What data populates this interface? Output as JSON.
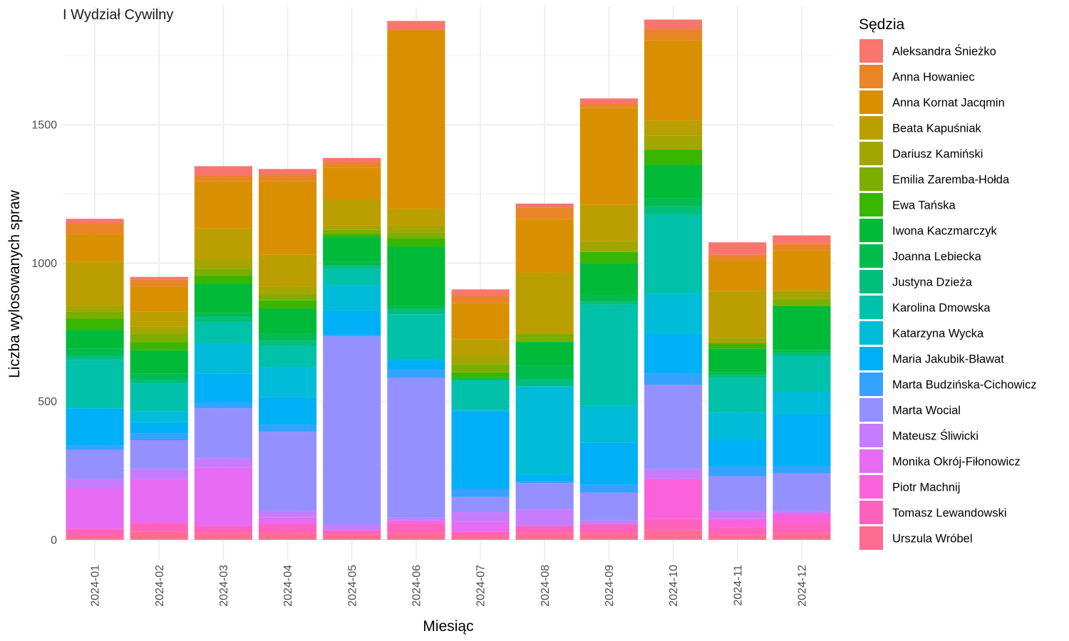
{
  "chart_data": {
    "type": "bar",
    "stacked": true,
    "title": "I Wydział Cywilny",
    "xlabel": "Miesiąc",
    "ylabel": "Liczba wylosowanych spraw",
    "ylim": [
      -75,
      1925
    ],
    "yticks": [
      0,
      500,
      1000,
      1500
    ],
    "grid": true,
    "legend_title": "Sędzia",
    "legend_position": "right",
    "categories": [
      "2024-01",
      "2024-02",
      "2024-03",
      "2024-04",
      "2024-05",
      "2024-06",
      "2024-07",
      "2024-08",
      "2024-09",
      "2024-10",
      "2024-11",
      "2024-12"
    ],
    "series": [
      {
        "name": "Urszula Wróbel",
        "color": "#FF6C91",
        "values": [
          15,
          30,
          25,
          25,
          20,
          25,
          15,
          25,
          25,
          35,
          20,
          25
        ]
      },
      {
        "name": "Tomasz Lewandowski",
        "color": "#FF62BC",
        "values": [
          25,
          30,
          25,
          30,
          15,
          35,
          15,
          25,
          30,
          40,
          25,
          35
        ]
      },
      {
        "name": "Piotr Machnij",
        "color": "#FA62DB",
        "values": [
          0,
          0,
          0,
          0,
          0,
          0,
          0,
          0,
          0,
          145,
          30,
          35
        ]
      },
      {
        "name": "Monika Okrój-Fiłonowicz",
        "color": "#E76BF3",
        "values": [
          145,
          160,
          210,
          25,
          0,
          10,
          35,
          0,
          0,
          0,
          0,
          0
        ]
      },
      {
        "name": "Mateusz Śliwicki",
        "color": "#C77CFF",
        "values": [
          35,
          35,
          35,
          25,
          20,
          10,
          35,
          60,
          15,
          35,
          30,
          10
        ]
      },
      {
        "name": "Marta Wocial",
        "color": "#9590FF",
        "values": [
          105,
          105,
          180,
          285,
          680,
          505,
          55,
          95,
          100,
          305,
          125,
          135
        ]
      },
      {
        "name": "Marta Budzińska-Cichowicz",
        "color": "#35A2FF",
        "values": [
          15,
          25,
          20,
          25,
          5,
          30,
          30,
          5,
          30,
          40,
          35,
          25
        ]
      },
      {
        "name": "Maria Jakubik-Bławat",
        "color": "#00B0F6",
        "values": [
          135,
          40,
          105,
          100,
          90,
          35,
          280,
          25,
          150,
          145,
          95,
          190
        ]
      },
      {
        "name": "Katarzyna Wycka",
        "color": "#00BCD8",
        "values": [
          0,
          40,
          110,
          110,
          90,
          0,
          5,
          320,
          135,
          145,
          100,
          80
        ]
      },
      {
        "name": "Karolina Dmowska",
        "color": "#00C1A9",
        "values": [
          175,
          100,
          75,
          75,
          60,
          165,
          105,
          0,
          365,
          285,
          125,
          130
        ]
      },
      {
        "name": "Justyna Dzieża",
        "color": "#00BF7D",
        "values": [
          15,
          15,
          20,
          20,
          10,
          20,
          5,
          25,
          10,
          30,
          10,
          10
        ]
      },
      {
        "name": "Joanna Lebiecka",
        "color": "#00BB4E",
        "values": [
          25,
          20,
          15,
          25,
          15,
          10,
          5,
          50,
          25,
          30,
          10,
          10
        ]
      },
      {
        "name": "Iwona Kaczmarczyk",
        "color": "#00BA38",
        "values": [
          70,
          85,
          105,
          90,
          90,
          215,
          0,
          85,
          115,
          120,
          85,
          160
        ]
      },
      {
        "name": "Ewa Tańska",
        "color": "#39B600",
        "values": [
          40,
          30,
          30,
          30,
          10,
          30,
          20,
          0,
          40,
          55,
          20,
          0
        ]
      },
      {
        "name": "Emilia Zaremba-Hołda",
        "color": "#7CAE00",
        "values": [
          25,
          30,
          25,
          20,
          15,
          20,
          30,
          30,
          0,
          0,
          0,
          25
        ]
      },
      {
        "name": "Dariusz Kamiński",
        "color": "#A3A500",
        "values": [
          20,
          25,
          30,
          30,
          15,
          25,
          30,
          0,
          40,
          50,
          20,
          30
        ]
      },
      {
        "name": "Beata Kapuśniak",
        "color": "#BB9E00",
        "values": [
          160,
          55,
          115,
          115,
          95,
          60,
          60,
          220,
          130,
          55,
          170,
          0
        ]
      },
      {
        "name": "Anna Kornat Jacqmin",
        "color": "#D89000",
        "values": [
          100,
          90,
          170,
          265,
          115,
          645,
          130,
          195,
          350,
          290,
          110,
          145
        ]
      },
      {
        "name": "Anna Howaniec",
        "color": "#E88526",
        "values": [
          40,
          25,
          20,
          25,
          20,
          5,
          25,
          40,
          15,
          40,
          20,
          25
        ]
      },
      {
        "name": "Aleksandra Śnieżko",
        "color": "#F8766D",
        "values": [
          15,
          10,
          35,
          20,
          15,
          30,
          25,
          15,
          20,
          35,
          45,
          30
        ]
      }
    ]
  }
}
